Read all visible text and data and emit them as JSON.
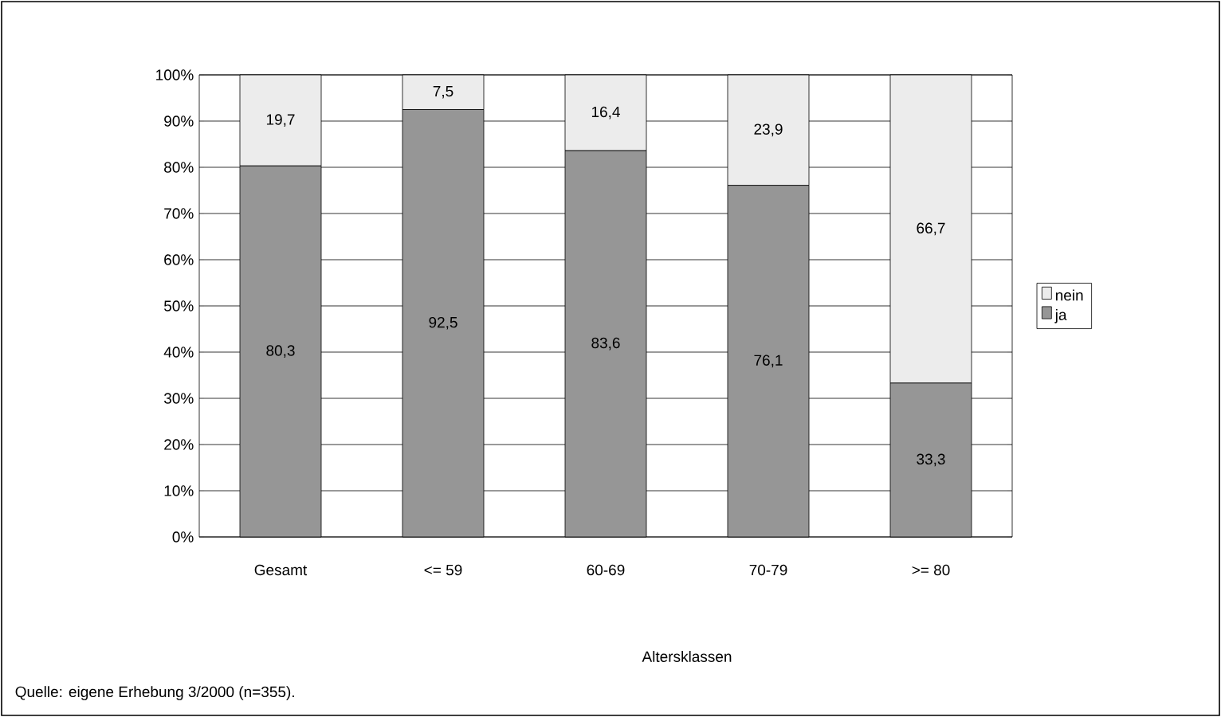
{
  "chart_data": {
    "type": "bar",
    "stacked": true,
    "categories": [
      "Gesamt",
      "<= 59",
      "60-69",
      "70-79",
      ">= 80"
    ],
    "series": [
      {
        "name": "ja",
        "color": "#969696",
        "values": [
          80.3,
          92.5,
          83.6,
          76.1,
          33.3
        ],
        "value_labels": [
          "80,3",
          "92,5",
          "83,6",
          "76,1",
          "33,3"
        ]
      },
      {
        "name": "nein",
        "color": "#ececec",
        "values": [
          19.7,
          7.5,
          16.4,
          23.9,
          66.7
        ],
        "value_labels": [
          "19,7",
          "7,5",
          "16,4",
          "23,9",
          "66,7"
        ]
      }
    ],
    "ylim": [
      0,
      100
    ],
    "yticks": [
      {
        "value": 0,
        "label": "0%"
      },
      {
        "value": 10,
        "label": "10%"
      },
      {
        "value": 20,
        "label": "20%"
      },
      {
        "value": 30,
        "label": "30%"
      },
      {
        "value": 40,
        "label": "40%"
      },
      {
        "value": 50,
        "label": "50%"
      },
      {
        "value": 60,
        "label": "60%"
      },
      {
        "value": 70,
        "label": "70%"
      },
      {
        "value": 80,
        "label": "80%"
      },
      {
        "value": 90,
        "label": "90%"
      },
      {
        "value": 100,
        "label": "100%"
      }
    ],
    "grid": "y",
    "legend": "right",
    "annotations": [
      "Altersklassen",
      "Quelle: eigene Erhebung 3/2000 (n=355)."
    ]
  }
}
